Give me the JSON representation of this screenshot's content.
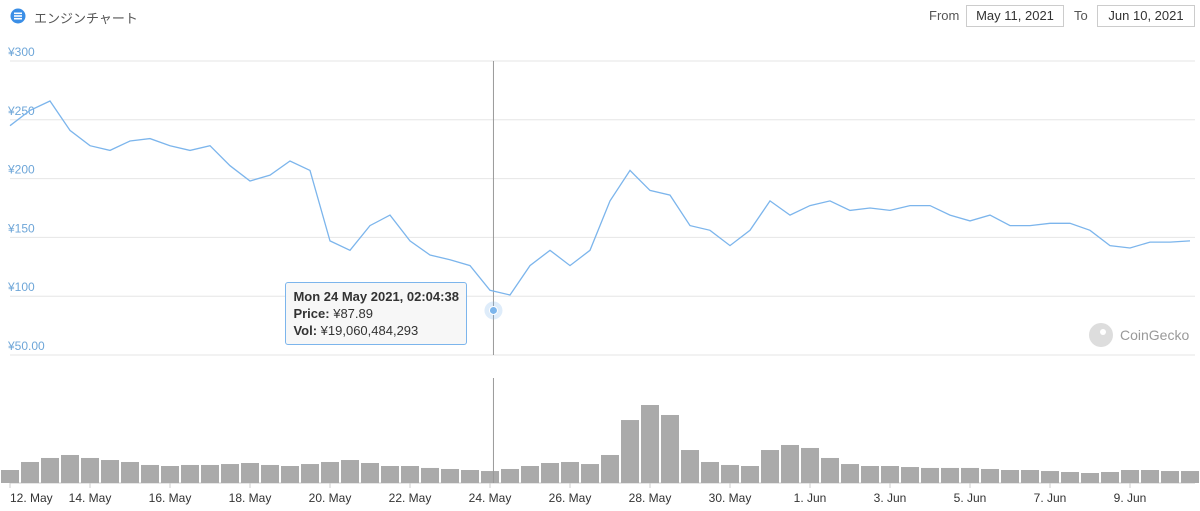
{
  "header": {
    "title": "エンジンチャート",
    "from_label": "From",
    "from": "May 11, 2021",
    "to_label": "To",
    "to": "Jun 10, 2021"
  },
  "watermark": "CoinGecko",
  "chart_data": {
    "type": "line",
    "color": "#7cb5ec",
    "grid": true,
    "x": [
      "2021-05-12T00:00",
      "2021-05-12T12:00",
      "2021-05-13T00:00",
      "2021-05-13T12:00",
      "2021-05-14T00:00",
      "2021-05-14T12:00",
      "2021-05-15T00:00",
      "2021-05-15T12:00",
      "2021-05-16T00:00",
      "2021-05-16T12:00",
      "2021-05-17T00:00",
      "2021-05-17T12:00",
      "2021-05-18T00:00",
      "2021-05-18T12:00",
      "2021-05-19T00:00",
      "2021-05-19T12:00",
      "2021-05-20T00:00",
      "2021-05-20T12:00",
      "2021-05-21T00:00",
      "2021-05-21T12:00",
      "2021-05-22T00:00",
      "2021-05-22T12:00",
      "2021-05-23T00:00",
      "2021-05-23T12:00",
      "2021-05-24T00:00",
      "2021-05-24T12:00",
      "2021-05-25T00:00",
      "2021-05-25T12:00",
      "2021-05-26T00:00",
      "2021-05-26T12:00",
      "2021-05-27T00:00",
      "2021-05-27T12:00",
      "2021-05-28T00:00",
      "2021-05-28T12:00",
      "2021-05-29T00:00",
      "2021-05-29T12:00",
      "2021-05-30T00:00",
      "2021-05-30T12:00",
      "2021-05-31T00:00",
      "2021-05-31T12:00",
      "2021-06-01T00:00",
      "2021-06-01T12:00",
      "2021-06-02T00:00",
      "2021-06-02T12:00",
      "2021-06-03T00:00",
      "2021-06-03T12:00",
      "2021-06-04T00:00",
      "2021-06-04T12:00",
      "2021-06-05T00:00",
      "2021-06-05T12:00",
      "2021-06-06T00:00",
      "2021-06-06T12:00",
      "2021-06-07T00:00",
      "2021-06-07T12:00",
      "2021-06-08T00:00",
      "2021-06-08T12:00",
      "2021-06-09T00:00",
      "2021-06-09T12:00",
      "2021-06-10T00:00",
      "2021-06-10T12:00"
    ],
    "values": [
      245,
      258,
      266,
      241,
      228,
      224,
      232,
      234,
      228,
      224,
      228,
      211,
      198,
      203,
      215,
      207,
      147,
      139,
      160,
      169,
      147,
      135,
      131,
      126,
      105,
      101,
      126,
      139,
      126,
      139,
      181,
      207,
      190,
      186,
      160,
      156,
      143,
      156,
      181,
      169,
      177,
      181,
      173,
      175,
      173,
      177,
      177,
      169,
      164,
      169,
      160,
      160,
      162,
      162,
      156,
      143,
      141,
      146,
      146,
      147
    ],
    "volume": {
      "color": "#aaaaaa",
      "values": [
        19100000000,
        30900000000,
        36800000000,
        41200000000,
        36800000000,
        33800000000,
        30900000000,
        26500000000,
        25000000000,
        26500000000,
        26500000000,
        27900000000,
        29400000000,
        26500000000,
        25000000000,
        27900000000,
        30900000000,
        33800000000,
        29400000000,
        25000000000,
        25000000000,
        22100000000,
        20600000000,
        19100000000,
        17600000000,
        20600000000,
        25000000000,
        29400000000,
        30900000000,
        27900000000,
        41200000000,
        92600000000,
        114700000000,
        100000000000,
        48500000000,
        30900000000,
        26500000000,
        25000000000,
        48500000000,
        55900000000,
        51500000000,
        36800000000,
        27900000000,
        25000000000,
        25000000000,
        23500000000,
        22100000000,
        22100000000,
        22100000000,
        20600000000,
        19100000000,
        19100000000,
        17600000000,
        16200000000,
        14700000000,
        16200000000,
        19100000000,
        19100000000,
        17600000000,
        17600000000
      ]
    },
    "xlim": [
      "2021-05-12T00:00",
      "2021-06-10T15:00"
    ],
    "xticks": [
      {
        "value": "2021-05-12T00:00",
        "label": "12. May"
      },
      {
        "value": "2021-05-14T00:00",
        "label": "14. May"
      },
      {
        "value": "2021-05-16T00:00",
        "label": "16. May"
      },
      {
        "value": "2021-05-18T00:00",
        "label": "18. May"
      },
      {
        "value": "2021-05-20T00:00",
        "label": "20. May"
      },
      {
        "value": "2021-05-22T00:00",
        "label": "22. May"
      },
      {
        "value": "2021-05-24T00:00",
        "label": "24. May"
      },
      {
        "value": "2021-05-26T00:00",
        "label": "26. May"
      },
      {
        "value": "2021-05-28T00:00",
        "label": "28. May"
      },
      {
        "value": "2021-05-30T00:00",
        "label": "30. May"
      },
      {
        "value": "2021-06-01T00:00",
        "label": "1. Jun"
      },
      {
        "value": "2021-06-03T00:00",
        "label": "3. Jun"
      },
      {
        "value": "2021-06-05T00:00",
        "label": "5. Jun"
      },
      {
        "value": "2021-06-07T00:00",
        "label": "7. Jun"
      },
      {
        "value": "2021-06-09T00:00",
        "label": "9. Jun"
      }
    ],
    "ylim": [
      50,
      300
    ],
    "yticks": [
      {
        "value": 300,
        "label": "¥300"
      },
      {
        "value": 250,
        "label": "¥250"
      },
      {
        "value": 200,
        "label": "¥200"
      },
      {
        "value": 150,
        "label": "¥150"
      },
      {
        "value": 100,
        "label": "¥100"
      },
      {
        "value": 50,
        "label": "¥50.00"
      }
    ],
    "tooltip": {
      "x": "2021-05-24T02:04:38",
      "value": 87.89,
      "title": "Mon 24 May 2021, 02:04:38",
      "price_label": "Price:",
      "price": "¥87.89",
      "vol_label": "Vol:",
      "vol": "¥19,060,484,293"
    }
  }
}
